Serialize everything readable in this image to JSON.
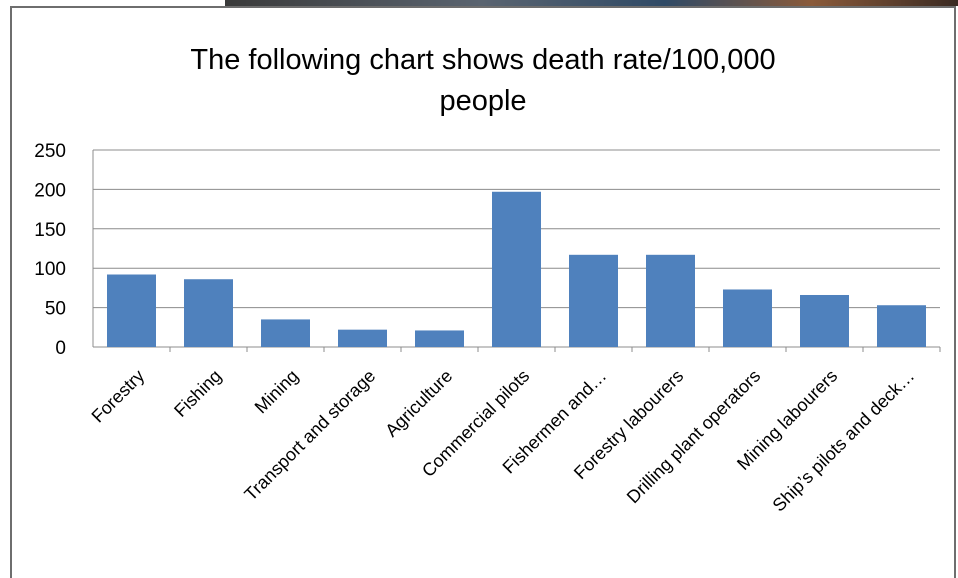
{
  "chart_data": {
    "type": "bar",
    "title_lines": [
      "The following chart shows death rate/100,000",
      "people"
    ],
    "categories": [
      "Forestry",
      "Fishing",
      "Mining",
      "Transport and storage",
      "Agriculture",
      "Commercial pilots",
      "Fishermen and…",
      "Forestry labourers",
      "Drilling plant operators",
      "Mining labourers",
      "Ship’s pilots and deck…"
    ],
    "values": [
      92,
      86,
      35,
      22,
      21,
      197,
      117,
      117,
      73,
      66,
      53
    ],
    "ylim": [
      0,
      250
    ],
    "yticks": [
      "0",
      "50",
      "100",
      "150",
      "200",
      "250"
    ],
    "ytick_values": [
      0,
      50,
      100,
      150,
      200,
      250
    ],
    "grid": true,
    "legend": "none",
    "bar_color": "#4f81bd"
  }
}
